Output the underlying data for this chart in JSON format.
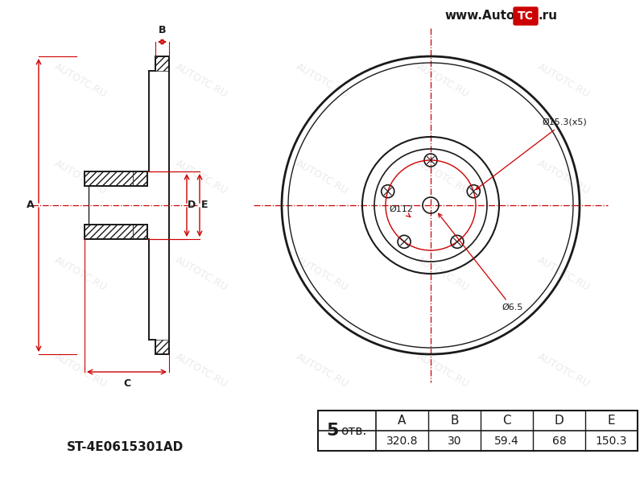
{
  "bg_color": "#ffffff",
  "watermark_text": "AUTOTC.RU",
  "watermark_color": "#cccccc",
  "line_color": "#1a1a1a",
  "red_color": "#cc0000",
  "part_number": "ST-4E0615301AD",
  "table": {
    "holes": "5",
    "holes_label": "отв.",
    "A": "320.8",
    "B": "30",
    "C": "59.4",
    "D": "68",
    "E": "150.3"
  },
  "annotations": {
    "bolt_circle": "Ø15.3(x5)",
    "hub_circle": "Ø112",
    "center_hole": "Ø6.5"
  },
  "logo": "www.AutoⓉC.ru"
}
